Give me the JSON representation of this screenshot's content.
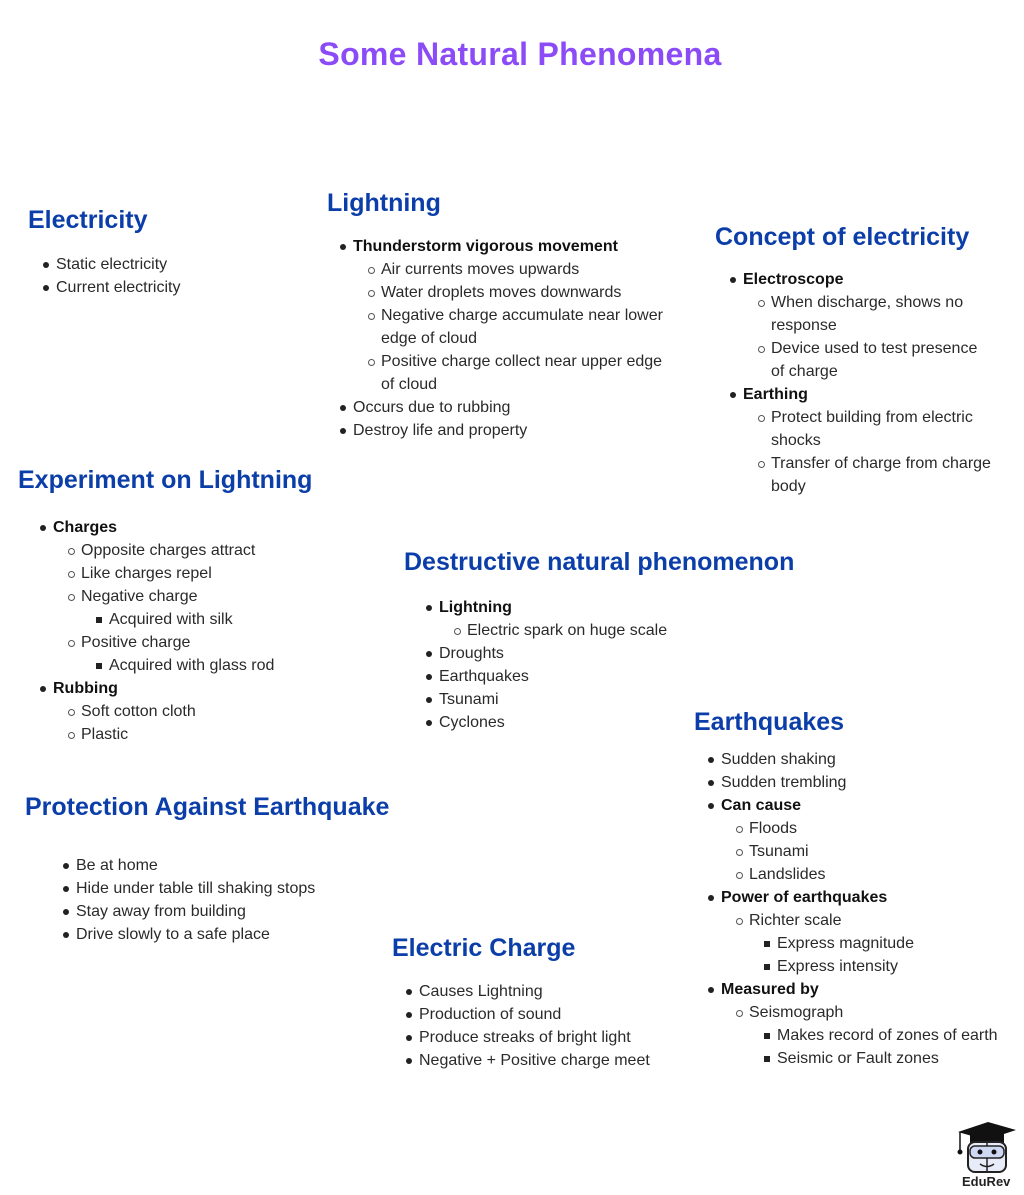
{
  "title": "Some Natural Phenomena",
  "colors": {
    "title": "#8b4cf7",
    "heading": "#0b3ea8",
    "text": "#2a2a2a"
  },
  "logo": {
    "text": "EduRev",
    "icon": "graduation-cap-mascot-icon"
  },
  "sections": {
    "electricity": {
      "heading": "Electricity",
      "items": [
        {
          "text": "Static electricity"
        },
        {
          "text": "Current electricity"
        }
      ]
    },
    "lightning": {
      "heading": "Lightning",
      "items": [
        {
          "text": "Thunderstorm vigorous movement",
          "bold": true,
          "children": [
            {
              "text": "Air currents moves upwards"
            },
            {
              "text": "Water droplets moves downwards"
            },
            {
              "text": "Negative charge accumulate near lower edge of cloud"
            },
            {
              "text": "Positive charge collect near upper edge of cloud"
            }
          ]
        },
        {
          "text": "Occurs due to rubbing"
        },
        {
          "text": "Destroy life and property"
        }
      ]
    },
    "concept": {
      "heading": "Concept of electricity",
      "items": [
        {
          "text": "Electroscope",
          "bold": true,
          "children": [
            {
              "text": "When discharge, shows no response"
            },
            {
              "text": "Device used to test presence of charge"
            }
          ]
        },
        {
          "text": "Earthing",
          "bold": true,
          "children": [
            {
              "text": "Protect building from electric shocks"
            },
            {
              "text": "Transfer of charge from charge body"
            }
          ]
        }
      ]
    },
    "experiment": {
      "heading": "Experiment on Lightning",
      "items": [
        {
          "text": "Charges",
          "bold": true,
          "children": [
            {
              "text": "Opposite charges attract"
            },
            {
              "text": "Like charges repel"
            },
            {
              "text": "Negative charge",
              "children": [
                {
                  "text": "Acquired with silk"
                }
              ]
            },
            {
              "text": "Positive charge",
              "children": [
                {
                  "text": "Acquired with glass rod"
                }
              ]
            }
          ]
        },
        {
          "text": "Rubbing",
          "bold": true,
          "children": [
            {
              "text": "Soft cotton cloth"
            },
            {
              "text": "Plastic"
            }
          ]
        }
      ]
    },
    "destructive": {
      "heading": "Destructive natural phenomenon",
      "items": [
        {
          "text": "Lightning",
          "bold": true,
          "children": [
            {
              "text": "Electric spark on huge scale"
            }
          ]
        },
        {
          "text": "Droughts"
        },
        {
          "text": "Earthquakes"
        },
        {
          "text": "Tsunami"
        },
        {
          "text": "Cyclones"
        }
      ]
    },
    "earthquakes": {
      "heading": "Earthquakes",
      "items": [
        {
          "text": "Sudden shaking"
        },
        {
          "text": "Sudden trembling"
        },
        {
          "text": "Can cause",
          "bold": true,
          "children": [
            {
              "text": "Floods"
            },
            {
              "text": "Tsunami"
            },
            {
              "text": "Landslides"
            }
          ]
        },
        {
          "text": "Power of earthquakes",
          "bold": true,
          "children": [
            {
              "text": "Richter scale",
              "children": [
                {
                  "text": "Express magnitude"
                },
                {
                  "text": "Express intensity"
                }
              ]
            }
          ]
        },
        {
          "text": "Measured by",
          "bold": true,
          "children": [
            {
              "text": "Seismograph",
              "children": [
                {
                  "text": "Makes record of zones of earth"
                },
                {
                  "text": "Seismic or Fault zones"
                }
              ]
            }
          ]
        }
      ]
    },
    "protection": {
      "heading": "Protection Against Earthquake",
      "items": [
        {
          "text": "Be at home"
        },
        {
          "text": "Hide under table till shaking stops"
        },
        {
          "text": "Stay away from building"
        },
        {
          "text": "Drive slowly to a safe place"
        }
      ]
    },
    "charge": {
      "heading": "Electric Charge",
      "items": [
        {
          "text": "Causes Lightning"
        },
        {
          "text": "Production of sound"
        },
        {
          "text": "Produce streaks of bright light"
        },
        {
          "text": "Negative + Positive charge meet"
        }
      ]
    }
  }
}
